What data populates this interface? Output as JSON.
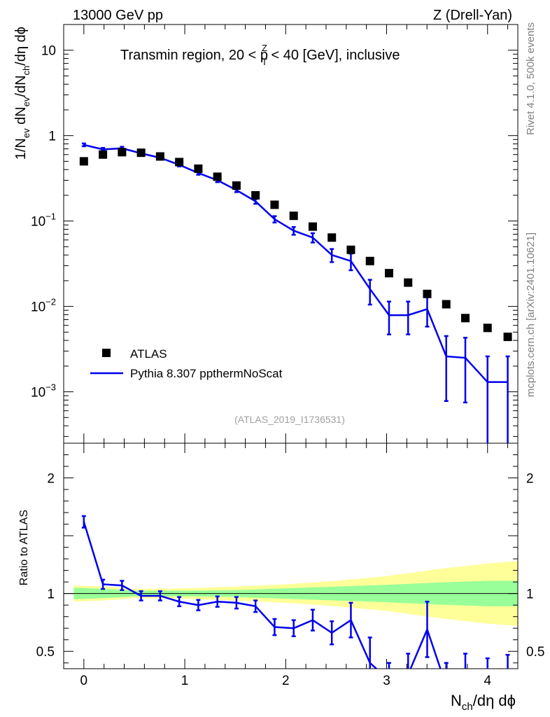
{
  "chart_data": {
    "type": "line",
    "header": {
      "left": "13000 GeV pp",
      "right": "Z (Drell-Yan)"
    },
    "title": {
      "main": "Transmin region, 20 < p",
      "sup": "Z",
      "sub": "T",
      "tail": " < 40 [GeV], inclusive"
    },
    "side_labels": {
      "rivet": "Rivet 4.1.0,  500k events",
      "mcplots": "mcplots.cern.ch [arXiv:2401.10621]"
    },
    "watermark": "(ATLAS_2019_I1736531)",
    "xlabel": {
      "p1": "N",
      "sub": "ch",
      "p2": "/dη dϕ"
    },
    "ylabel_main": {
      "p1": "1/N",
      "s1": "ev",
      "p2": " dN",
      "s2": "ev",
      "p3": "/dN",
      "s3": "ch",
      "p4": "/dη dϕ"
    },
    "ylabel_ratio": "Ratio to ATLAS",
    "xlim": [
      -0.2,
      4.3
    ],
    "ylim_main": [
      0.00025,
      20
    ],
    "ylim_ratio": [
      0.35,
      2.3
    ],
    "x_ticks": [
      "0",
      "1",
      "2",
      "3",
      "4"
    ],
    "y_ticks_main": [
      {
        "base": "10",
        "exp": "",
        "value": 10
      },
      {
        "base": "1",
        "exp": "",
        "value": 1
      },
      {
        "base": "10",
        "exp": "−1",
        "value": 0.1
      },
      {
        "base": "10",
        "exp": "−2",
        "value": 0.01
      },
      {
        "base": "10",
        "exp": "−3",
        "value": 0.001
      }
    ],
    "y_ticks_ratio": [
      {
        "label": "2",
        "value": 2
      },
      {
        "label": "1",
        "value": 1
      },
      {
        "label": "0.5",
        "value": 0.5
      }
    ],
    "legend": {
      "position": "middle-left",
      "data_label": "ATLAS",
      "mc_label": "Pythia 8.307 ppthermNoScat"
    },
    "colors": {
      "mc": "#0000ee",
      "data": "#000000",
      "band_inner": "#99ff99",
      "band_outer": "#ffff99"
    },
    "x": [
      0,
      0.189,
      0.378,
      0.567,
      0.756,
      0.945,
      1.134,
      1.323,
      1.512,
      1.701,
      1.89,
      2.079,
      2.268,
      2.457,
      2.646,
      2.835,
      3.024,
      3.213,
      3.402,
      3.591,
      3.78,
      4.0,
      4.2
    ],
    "series": [
      {
        "name": "ATLAS",
        "values": [
          0.5,
          0.6,
          0.64,
          0.63,
          0.57,
          0.49,
          0.41,
          0.33,
          0.26,
          0.2,
          0.155,
          0.115,
          0.086,
          0.064,
          0.046,
          0.034,
          0.0245,
          0.019,
          0.014,
          0.0106,
          0.0073,
          0.0056,
          0.0044
        ]
      },
      {
        "name": "Pythia 8.307 ppthermNoScat",
        "values": [
          0.78,
          0.69,
          0.71,
          0.62,
          0.55,
          0.455,
          0.365,
          0.3,
          0.23,
          0.17,
          0.105,
          0.077,
          0.064,
          0.04,
          0.034,
          0.016,
          0.0079,
          0.0079,
          0.0093,
          0.0026,
          0.0025,
          0.0013,
          0.0013
        ],
        "err_lo": [
          0.03,
          0.028,
          0.03,
          0.025,
          0.022,
          0.02,
          0.017,
          0.015,
          0.012,
          0.011,
          0.009,
          0.008,
          0.008,
          0.007,
          0.0075,
          0.0055,
          0.0032,
          0.0032,
          0.0035,
          0.00182,
          0.00175,
          0.0013,
          0.0013
        ],
        "err_hi": [
          0.03,
          0.028,
          0.03,
          0.025,
          0.022,
          0.02,
          0.017,
          0.015,
          0.012,
          0.011,
          0.009,
          0.008,
          0.008,
          0.007,
          0.0075,
          0.0045,
          0.0035,
          0.0035,
          0.004,
          0.0019,
          0.0018,
          0.0013,
          0.0013
        ]
      }
    ],
    "ratio": {
      "values": [
        1.62,
        1.08,
        1.07,
        0.98,
        0.98,
        0.93,
        0.9,
        0.93,
        0.92,
        0.89,
        0.71,
        0.7,
        0.77,
        0.66,
        0.77,
        0.4,
        0.25,
        0.3,
        0.69,
        0.2,
        0.28,
        0.22,
        0.25
      ],
      "err": [
        0.05,
        0.04,
        0.04,
        0.04,
        0.04,
        0.04,
        0.045,
        0.045,
        0.05,
        0.05,
        0.07,
        0.07,
        0.09,
        0.1,
        0.15,
        0.22,
        0.15,
        0.18,
        0.24,
        0.2,
        0.2,
        0.22,
        0.22
      ],
      "band_x": [
        -0.1,
        0.2,
        0.5,
        1.0,
        1.5,
        2.0,
        2.5,
        3.0,
        3.5,
        4.0,
        4.3
      ],
      "band_inner": [
        0.05,
        0.04,
        0.025,
        0.025,
        0.03,
        0.045,
        0.06,
        0.075,
        0.095,
        0.11,
        0.11
      ],
      "band_outer": [
        0.07,
        0.06,
        0.04,
        0.045,
        0.06,
        0.08,
        0.11,
        0.15,
        0.21,
        0.26,
        0.28
      ]
    }
  }
}
